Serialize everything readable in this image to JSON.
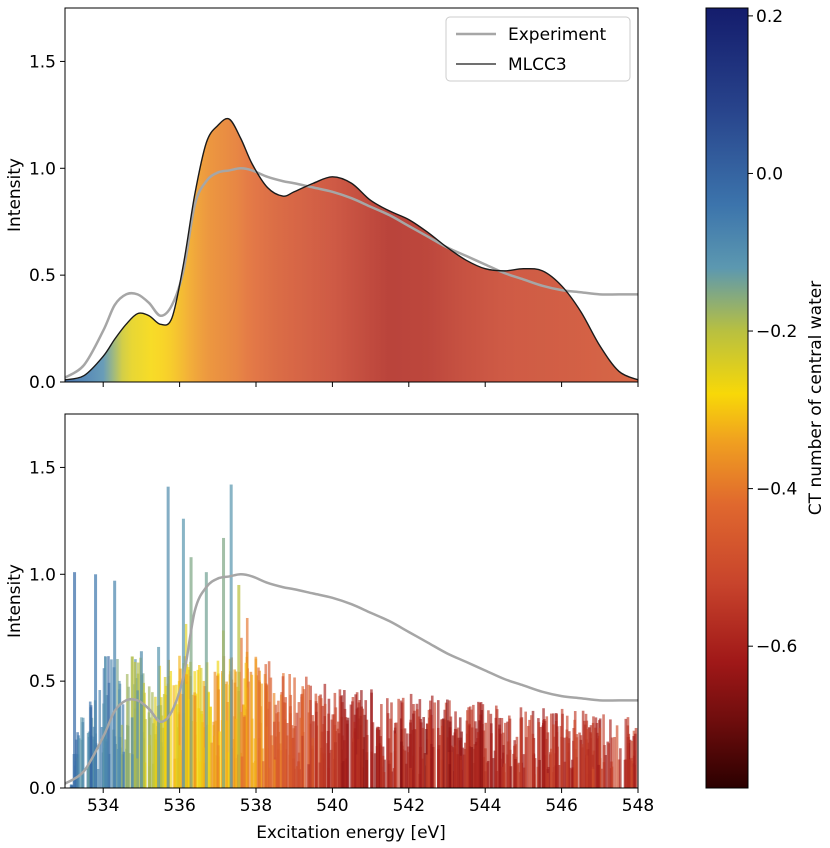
{
  "chart_data": [
    {
      "type": "area",
      "panel": "top",
      "title": "",
      "xlabel": "",
      "ylabel": "Intensity",
      "xlim": [
        533.0,
        548.0
      ],
      "ylim": [
        0.0,
        1.75
      ],
      "x_ticks": [
        534,
        536,
        538,
        540,
        542,
        544,
        546,
        548
      ],
      "y_ticks": [
        0.0,
        0.5,
        1.0,
        1.5
      ],
      "y_tick_labels": [
        "0.0",
        "0.5",
        "1.0",
        "1.5"
      ],
      "legend": {
        "placement": "top-right",
        "entries": [
          {
            "label": "Experiment",
            "color": "#a6a6a6"
          },
          {
            "label": "MLCC3",
            "color": "#1a1a1a"
          }
        ]
      },
      "series": [
        {
          "name": "Experiment",
          "color": "#a6a6a6",
          "x": [
            533.0,
            533.5,
            534.0,
            534.3,
            534.6,
            534.9,
            535.2,
            535.5,
            535.8,
            536.1,
            536.4,
            536.7,
            537.0,
            537.3,
            537.6,
            537.9,
            538.3,
            538.7,
            539.0,
            539.5,
            540.0,
            540.5,
            541.0,
            541.5,
            542.0,
            542.5,
            543.0,
            543.5,
            544.0,
            544.5,
            545.0,
            545.5,
            546.0,
            546.5,
            547.0,
            547.5,
            548.0
          ],
          "y": [
            0.02,
            0.08,
            0.24,
            0.36,
            0.41,
            0.41,
            0.37,
            0.31,
            0.36,
            0.52,
            0.83,
            0.94,
            0.98,
            0.99,
            1.0,
            0.99,
            0.96,
            0.94,
            0.93,
            0.91,
            0.89,
            0.86,
            0.82,
            0.78,
            0.73,
            0.68,
            0.63,
            0.59,
            0.55,
            0.51,
            0.48,
            0.45,
            0.43,
            0.42,
            0.41,
            0.41,
            0.41
          ]
        },
        {
          "name": "MLCC3",
          "color": "#1a1a1a",
          "x": [
            533.0,
            533.5,
            534.0,
            534.3,
            534.6,
            534.9,
            535.2,
            535.5,
            535.8,
            536.1,
            536.4,
            536.7,
            537.0,
            537.3,
            537.6,
            537.9,
            538.3,
            538.7,
            539.0,
            539.5,
            540.0,
            540.5,
            541.0,
            541.5,
            542.0,
            542.5,
            543.0,
            543.5,
            544.0,
            544.5,
            545.0,
            545.5,
            546.0,
            546.5,
            547.0,
            547.5,
            548.0
          ],
          "y": [
            0.01,
            0.03,
            0.12,
            0.2,
            0.27,
            0.32,
            0.31,
            0.27,
            0.3,
            0.55,
            0.88,
            1.12,
            1.2,
            1.23,
            1.14,
            1.02,
            0.91,
            0.87,
            0.89,
            0.93,
            0.96,
            0.93,
            0.85,
            0.8,
            0.76,
            0.7,
            0.63,
            0.57,
            0.53,
            0.52,
            0.53,
            0.52,
            0.45,
            0.33,
            0.17,
            0.05,
            0.01
          ]
        }
      ],
      "fill_ct_color_anchors": [
        {
          "x": 533.0,
          "ct": 0.0
        },
        {
          "x": 534.0,
          "ct": -0.1
        },
        {
          "x": 534.6,
          "ct": -0.25
        },
        {
          "x": 535.8,
          "ct": -0.3
        },
        {
          "x": 536.7,
          "ct": -0.37
        },
        {
          "x": 537.5,
          "ct": -0.4
        },
        {
          "x": 538.5,
          "ct": -0.46
        },
        {
          "x": 539.5,
          "ct": -0.5
        },
        {
          "x": 540.5,
          "ct": -0.54
        },
        {
          "x": 541.5,
          "ct": -0.58
        },
        {
          "x": 542.5,
          "ct": -0.57
        },
        {
          "x": 543.5,
          "ct": -0.54
        },
        {
          "x": 544.5,
          "ct": -0.52
        },
        {
          "x": 545.5,
          "ct": -0.51
        },
        {
          "x": 546.5,
          "ct": -0.5
        },
        {
          "x": 548.0,
          "ct": -0.48
        }
      ]
    },
    {
      "type": "bar",
      "panel": "bottom",
      "title": "",
      "xlabel": "Excitation energy [eV]",
      "ylabel": "Intensity",
      "xlim": [
        533.0,
        548.0
      ],
      "ylim": [
        0.0,
        1.75
      ],
      "x_ticks": [
        534,
        536,
        538,
        540,
        542,
        544,
        546,
        548
      ],
      "y_ticks": [
        0.0,
        0.5,
        1.0,
        1.5
      ],
      "y_tick_labels": [
        "0.0",
        "0.5",
        "1.0",
        "1.5"
      ],
      "n_stick_transitions": 900,
      "random_seed": 7,
      "notable_sticks": [
        {
          "x": 533.25,
          "y": 1.01,
          "ct": -0.02
        },
        {
          "x": 533.8,
          "y": 1.0,
          "ct": -0.05
        },
        {
          "x": 534.3,
          "y": 0.97,
          "ct": -0.08
        },
        {
          "x": 535.0,
          "y": 0.64,
          "ct": -0.1
        },
        {
          "x": 535.45,
          "y": 0.66,
          "ct": -0.12
        },
        {
          "x": 535.7,
          "y": 1.41,
          "ct": -0.1
        },
        {
          "x": 536.1,
          "y": 1.26,
          "ct": -0.12
        },
        {
          "x": 536.3,
          "y": 1.08,
          "ct": -0.15
        },
        {
          "x": 536.7,
          "y": 1.01,
          "ct": -0.14
        },
        {
          "x": 537.15,
          "y": 1.17,
          "ct": -0.15
        },
        {
          "x": 537.35,
          "y": 1.42,
          "ct": -0.12
        },
        {
          "x": 537.55,
          "y": 0.95,
          "ct": -0.2
        }
      ],
      "series": [
        {
          "name": "Experiment",
          "color": "#a6a6a6",
          "x": [
            533.0,
            533.5,
            534.0,
            534.3,
            534.6,
            534.9,
            535.2,
            535.5,
            535.8,
            536.1,
            536.4,
            536.7,
            537.0,
            537.3,
            537.6,
            537.9,
            538.3,
            538.7,
            539.0,
            539.5,
            540.0,
            540.5,
            541.0,
            541.5,
            542.0,
            542.5,
            543.0,
            543.5,
            544.0,
            544.5,
            545.0,
            545.5,
            546.0,
            546.5,
            547.0,
            547.5,
            548.0
          ],
          "y": [
            0.02,
            0.08,
            0.24,
            0.36,
            0.41,
            0.41,
            0.37,
            0.31,
            0.36,
            0.52,
            0.83,
            0.94,
            0.98,
            0.99,
            1.0,
            0.99,
            0.96,
            0.94,
            0.93,
            0.91,
            0.89,
            0.86,
            0.82,
            0.78,
            0.73,
            0.68,
            0.63,
            0.59,
            0.55,
            0.51,
            0.48,
            0.45,
            0.43,
            0.42,
            0.41,
            0.41,
            0.41
          ]
        }
      ]
    }
  ],
  "colorbar": {
    "label": "CT number of central water",
    "range": [
      -0.78,
      0.21
    ],
    "ticks": [
      0.2,
      0.0,
      -0.2,
      -0.4,
      -0.6
    ],
    "tick_labels": [
      "0.2",
      "0.0",
      "−0.2",
      "−0.4",
      "−0.6"
    ],
    "colormap_stops": [
      {
        "v": -0.78,
        "color": "#2b0000"
      },
      {
        "v": -0.7,
        "color": "#6b0c0c"
      },
      {
        "v": -0.62,
        "color": "#a01818"
      },
      {
        "v": -0.52,
        "color": "#c8442c"
      },
      {
        "v": -0.42,
        "color": "#e0682e"
      },
      {
        "v": -0.34,
        "color": "#f0a020"
      },
      {
        "v": -0.28,
        "color": "#f8d808"
      },
      {
        "v": -0.2,
        "color": "#b8c040"
      },
      {
        "v": -0.12,
        "color": "#5c98b0"
      },
      {
        "v": -0.04,
        "color": "#3c74ac"
      },
      {
        "v": 0.08,
        "color": "#28448c"
      },
      {
        "v": 0.21,
        "color": "#141c6c"
      }
    ]
  }
}
